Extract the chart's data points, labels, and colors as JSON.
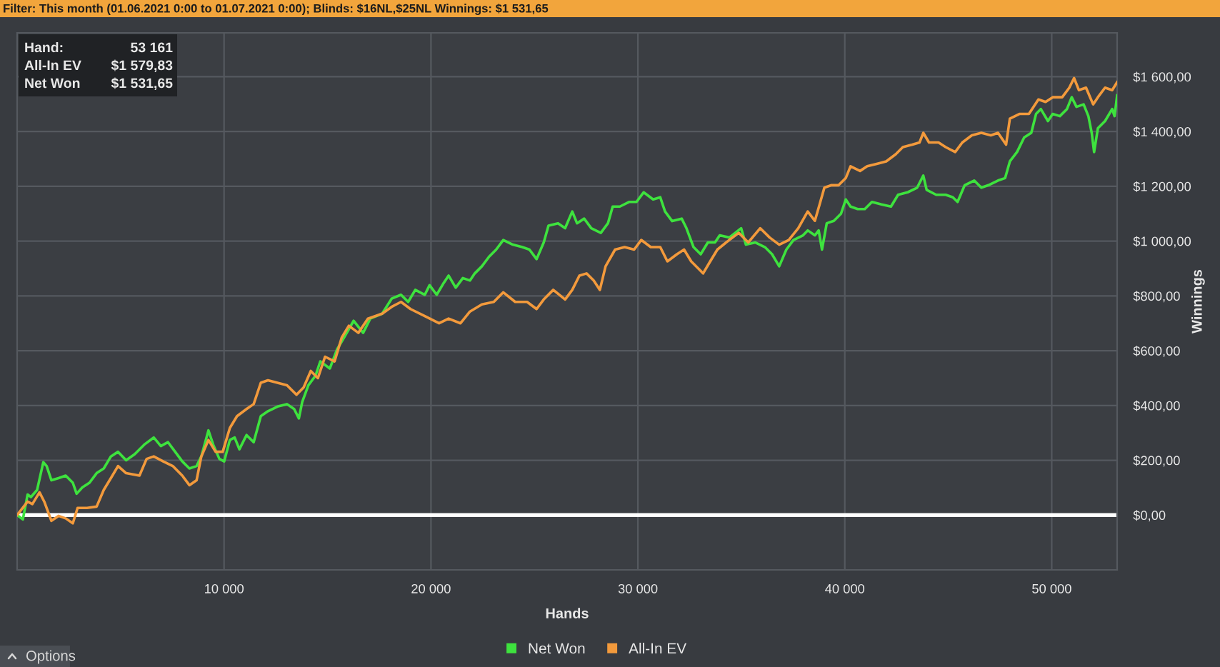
{
  "chart_data": {
    "type": "line",
    "title": "Filter: This month (01.06.2021 0:00 to 01.07.2021 0:00); Blinds: $16NL,$25NL Winnings: $1 531,65",
    "xlabel": "Hands",
    "ylabel": "Winnings",
    "annotations": [
      "Hand:",
      "53 161",
      "All-In EV",
      "$1 579,83",
      "Net Won",
      "$1 531,65",
      "Options"
    ],
    "xlim": [
      0,
      53161
    ],
    "ylim": [
      -200,
      1760
    ],
    "xticks": [
      {
        "value": 10000,
        "label": "10 000"
      },
      {
        "value": 20000,
        "label": "20 000"
      },
      {
        "value": 30000,
        "label": "30 000"
      },
      {
        "value": 40000,
        "label": "40 000"
      },
      {
        "value": 50000,
        "label": "50 000"
      }
    ],
    "yticks": [
      {
        "value": 0,
        "label": "$0,00"
      },
      {
        "value": 200,
        "label": "$200,00"
      },
      {
        "value": 400,
        "label": "$400,00"
      },
      {
        "value": 600,
        "label": "$600,00"
      },
      {
        "value": 800,
        "label": "$800,00"
      },
      {
        "value": 1000,
        "label": "$1 000,00"
      },
      {
        "value": 1200,
        "label": "$1 200,00"
      },
      {
        "value": 1400,
        "label": "$1 400,00"
      },
      {
        "value": 1600,
        "label": "$1 600,00"
      }
    ],
    "grid": true,
    "legend": "bottom",
    "ref_lines": [
      {
        "axis": "y",
        "value": 0,
        "color": "#ffffff"
      }
    ],
    "series": [
      {
        "name": "Net Won",
        "color": "#3ee23e",
        "x": [
          0,
          276,
          506,
          667,
          966,
          1265,
          1426,
          1656,
          2001,
          2346,
          2691,
          2875,
          3151,
          3496,
          3841,
          4186,
          4531,
          4876,
          5267,
          5681,
          6141,
          6601,
          6946,
          7291,
          7636,
          7981,
          8326,
          8671,
          8901,
          9246,
          9476,
          9775,
          10005,
          10281,
          10511,
          10741,
          11086,
          11431,
          11776,
          12121,
          12581,
          13041,
          13386,
          13616,
          13777,
          14076,
          14421,
          14651,
          15111,
          15456,
          15801,
          16261,
          16721,
          17066,
          17641,
          18100,
          18552,
          18897,
          19242,
          19702,
          19932,
          20276,
          20621,
          20851,
          21196,
          21541,
          21886,
          22116,
          22461,
          22806,
          23150,
          23495,
          23955,
          24415,
          24760,
          25104,
          25449,
          25679,
          26139,
          26483,
          26828,
          27058,
          27403,
          27748,
          28208,
          28552,
          28782,
          29127,
          29587,
          29932,
          30277,
          30736,
          31081,
          31311,
          31656,
          32116,
          32346,
          32690,
          33035,
          33380,
          33725,
          33955,
          34415,
          34989,
          35219,
          35679,
          36139,
          36484,
          36829,
          37174,
          37519,
          37979,
          38207,
          38552,
          38736,
          38897,
          39127,
          39471,
          39816,
          40046,
          40276,
          40621,
          40966,
          41311,
          41771,
          42230,
          42575,
          43035,
          43495,
          43793,
          43955,
          44414,
          44874,
          45219,
          45449,
          45794,
          46253,
          46598,
          46943,
          47403,
          47748,
          47977,
          48322,
          48667,
          49012,
          49242,
          49472,
          49817,
          50046,
          50391,
          50736,
          50966,
          51196,
          51541,
          51771,
          51932,
          52047,
          52231,
          52576,
          52921,
          53036,
          53161
        ],
        "values": [
          0,
          -16,
          75,
          66,
          92,
          193,
          179,
          127,
          135,
          144,
          118,
          78,
          101,
          118,
          153,
          170,
          214,
          231,
          200,
          222,
          257,
          283,
          252,
          266,
          231,
          196,
          170,
          179,
          214,
          309,
          257,
          205,
          196,
          274,
          283,
          240,
          292,
          266,
          361,
          379,
          396,
          405,
          387,
          353,
          413,
          474,
          509,
          561,
          535,
          604,
          648,
          709,
          665,
          717,
          735,
          790,
          804,
          778,
          822,
          804,
          839,
          804,
          848,
          874,
          830,
          865,
          856,
          882,
          908,
          943,
          969,
          1004,
          987,
          978,
          969,
          934,
          995,
          1056,
          1065,
          1047,
          1108,
          1065,
          1082,
          1047,
          1030,
          1065,
          1126,
          1126,
          1143,
          1143,
          1178,
          1152,
          1160,
          1108,
          1073,
          1082,
          1047,
          978,
          952,
          995,
          995,
          1021,
          1013,
          1047,
          987,
          995,
          978,
          952,
          908,
          969,
          1004,
          1021,
          1039,
          1021,
          1039,
          969,
          1065,
          1074,
          1100,
          1152,
          1126,
          1117,
          1117,
          1143,
          1134,
          1126,
          1169,
          1178,
          1195,
          1239,
          1187,
          1169,
          1169,
          1160,
          1143,
          1204,
          1221,
          1195,
          1204,
          1221,
          1230,
          1291,
          1325,
          1378,
          1395,
          1464,
          1482,
          1438,
          1464,
          1456,
          1482,
          1525,
          1490,
          1499,
          1456,
          1395,
          1325,
          1412,
          1438,
          1482,
          1456,
          1532
        ]
      },
      {
        "name": "All-In EV",
        "color": "#f39a3c",
        "x": [
          0,
          506,
          736,
          1081,
          1311,
          1656,
          2001,
          2346,
          2691,
          2921,
          3381,
          3841,
          4186,
          4531,
          4876,
          5267,
          5911,
          6256,
          6601,
          7061,
          7521,
          7981,
          8326,
          8671,
          8901,
          9246,
          9591,
          9936,
          10281,
          10626,
          11086,
          11431,
          11776,
          12121,
          12581,
          13041,
          13501,
          13846,
          14191,
          14536,
          14881,
          15341,
          15686,
          16031,
          16491,
          16951,
          17641,
          18100,
          18552,
          19012,
          19702,
          20391,
          20851,
          21426,
          21886,
          22461,
          23035,
          23495,
          24070,
          24645,
          25104,
          25449,
          25909,
          26483,
          26828,
          27173,
          27518,
          27863,
          28162,
          28438,
          28897,
          29357,
          29817,
          30162,
          30622,
          31081,
          31426,
          31886,
          32231,
          32576,
          32920,
          33150,
          33495,
          33840,
          34415,
          34874,
          35334,
          35909,
          36369,
          36829,
          37289,
          37749,
          38207,
          38552,
          38782,
          39012,
          39356,
          39701,
          40046,
          40276,
          40736,
          41081,
          41541,
          42000,
          42460,
          42805,
          43265,
          43610,
          43793,
          44069,
          44529,
          44874,
          45334,
          45679,
          46138,
          46598,
          47058,
          47403,
          47794,
          47977,
          48437,
          48897,
          49357,
          49702,
          50046,
          50506,
          50851,
          51081,
          51311,
          51656,
          52001,
          52231,
          52576,
          52921,
          53161
        ],
        "values": [
          0,
          49,
          40,
          83,
          49,
          -21,
          -3,
          -12,
          -30,
          26,
          26,
          31,
          92,
          135,
          179,
          153,
          144,
          205,
          214,
          196,
          179,
          144,
          109,
          127,
          214,
          274,
          231,
          231,
          318,
          361,
          387,
          405,
          483,
          492,
          483,
          474,
          439,
          466,
          526,
          500,
          578,
          561,
          648,
          691,
          665,
          717,
          735,
          760,
          778,
          752,
          726,
          700,
          717,
          700,
          743,
          769,
          778,
          813,
          778,
          778,
          752,
          787,
          822,
          787,
          822,
          874,
          882,
          856,
          822,
          908,
          969,
          978,
          969,
          1004,
          978,
          978,
          926,
          952,
          969,
          926,
          900,
          882,
          926,
          969,
          1004,
          1030,
          995,
          1047,
          1013,
          987,
          1004,
          1047,
          1108,
          1074,
          1134,
          1195,
          1204,
          1204,
          1230,
          1273,
          1256,
          1273,
          1282,
          1291,
          1317,
          1343,
          1352,
          1360,
          1395,
          1360,
          1360,
          1343,
          1325,
          1360,
          1386,
          1395,
          1386,
          1395,
          1352,
          1447,
          1464,
          1464,
          1517,
          1508,
          1525,
          1525,
          1560,
          1595,
          1551,
          1560,
          1499,
          1525,
          1560,
          1551,
          1580
        ]
      }
    ]
  }
}
